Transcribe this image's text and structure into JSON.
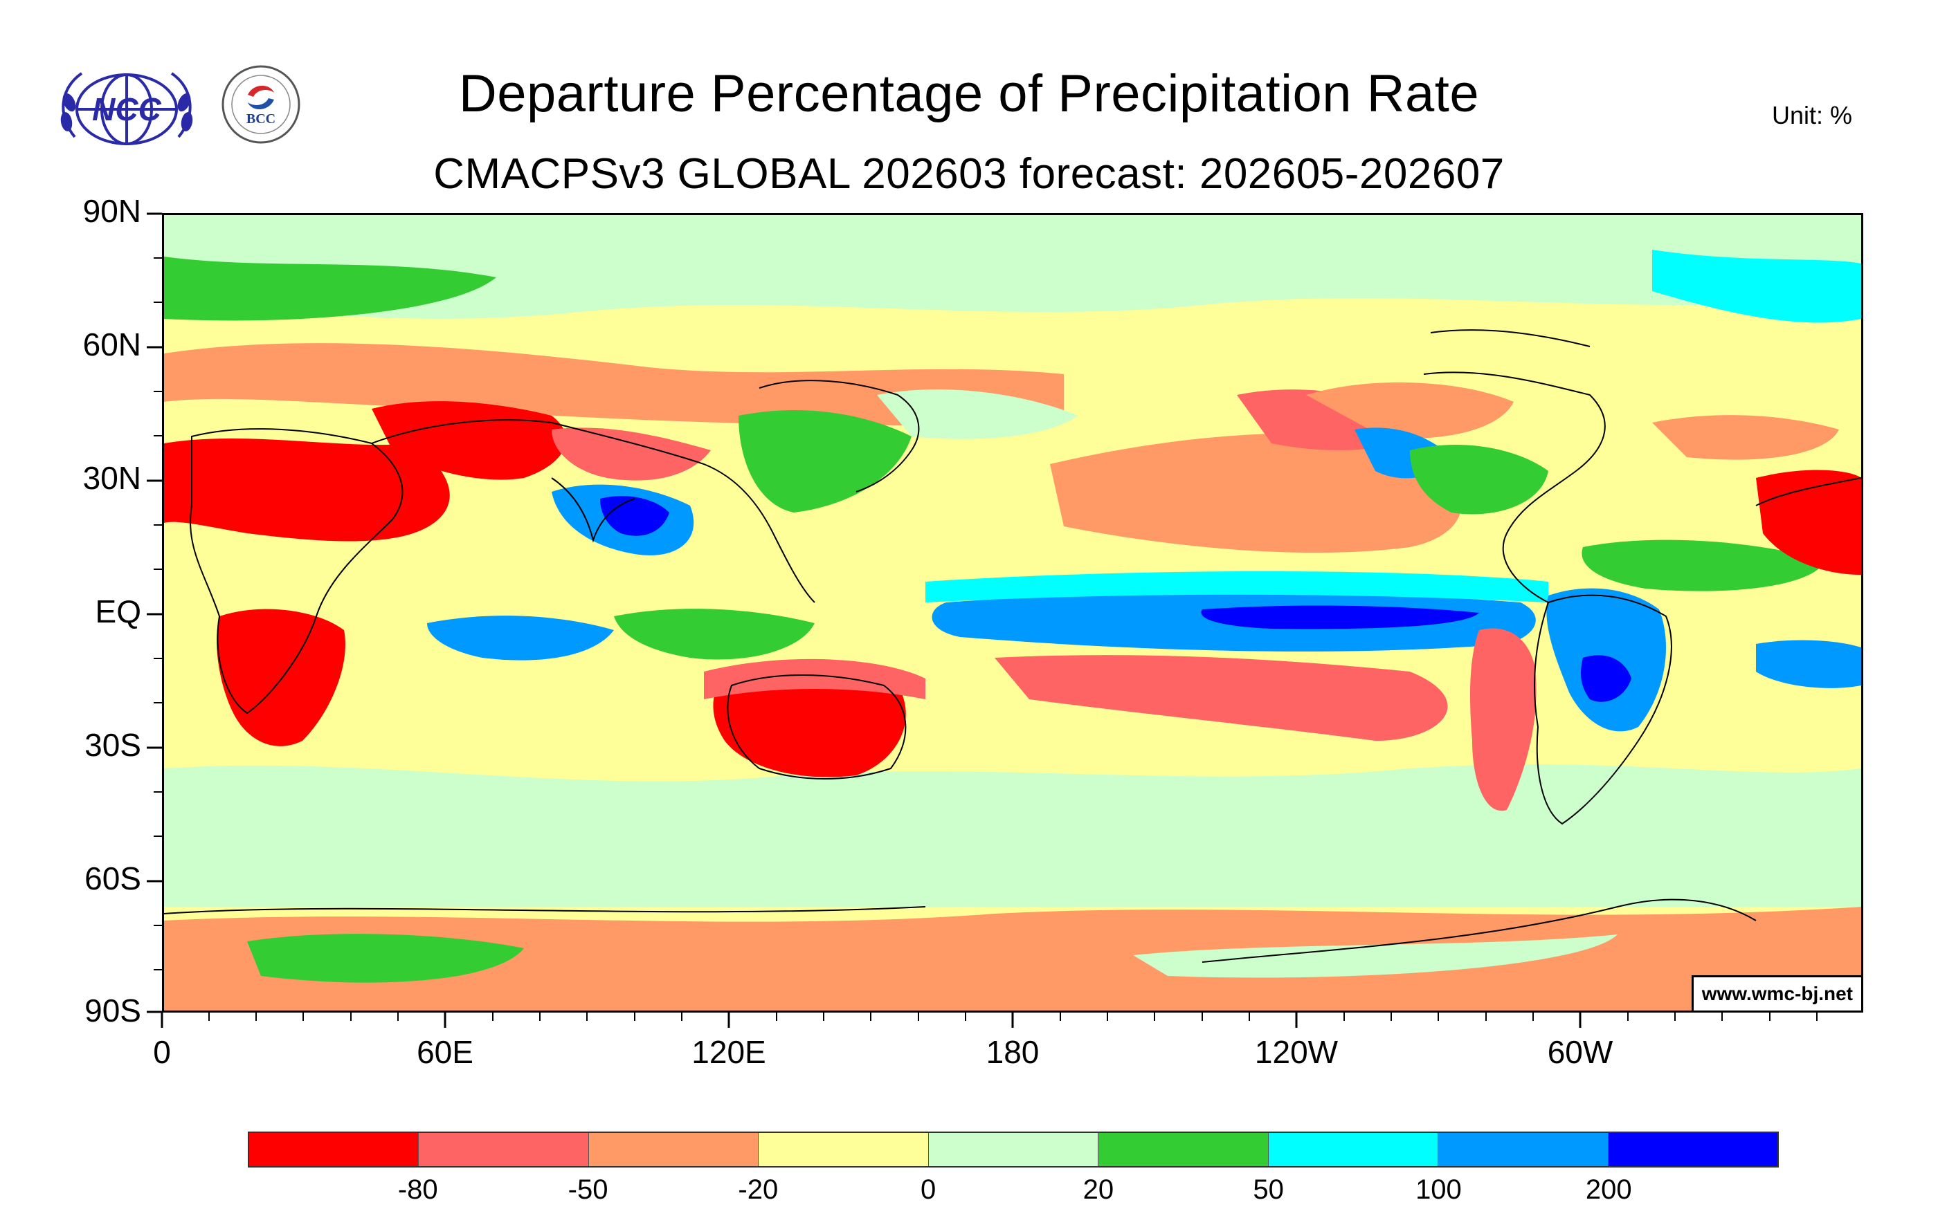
{
  "header": {
    "title": "Departure Percentage of Precipitation Rate",
    "subtitle": "CMACPSv3 GLOBAL 202603 forecast: 202605-202607",
    "unit": "Unit:  %"
  },
  "logos": {
    "ncc": {
      "text": "NCC",
      "icon": "ncc-globe-logo"
    },
    "bcc": {
      "text": "BCC",
      "icon": "bcc-emblem-logo"
    }
  },
  "map": {
    "lat_labels": [
      "90N",
      "60N",
      "30N",
      "EQ",
      "30S",
      "60S",
      "90S"
    ],
    "lon_labels": [
      "0",
      "60E",
      "120E",
      "180",
      "120W",
      "60W"
    ],
    "credit": "www.wmc-bj.net"
  },
  "colorbar": {
    "colors": [
      "#ff0000",
      "#ff6464",
      "#ff9966",
      "#ffff99",
      "#ccffcc",
      "#33cc33",
      "#00ffff",
      "#0099ff",
      "#0000ff"
    ],
    "labels": [
      "-80",
      "-50",
      "-20",
      "0",
      "20",
      "50",
      "100",
      "200"
    ]
  }
}
